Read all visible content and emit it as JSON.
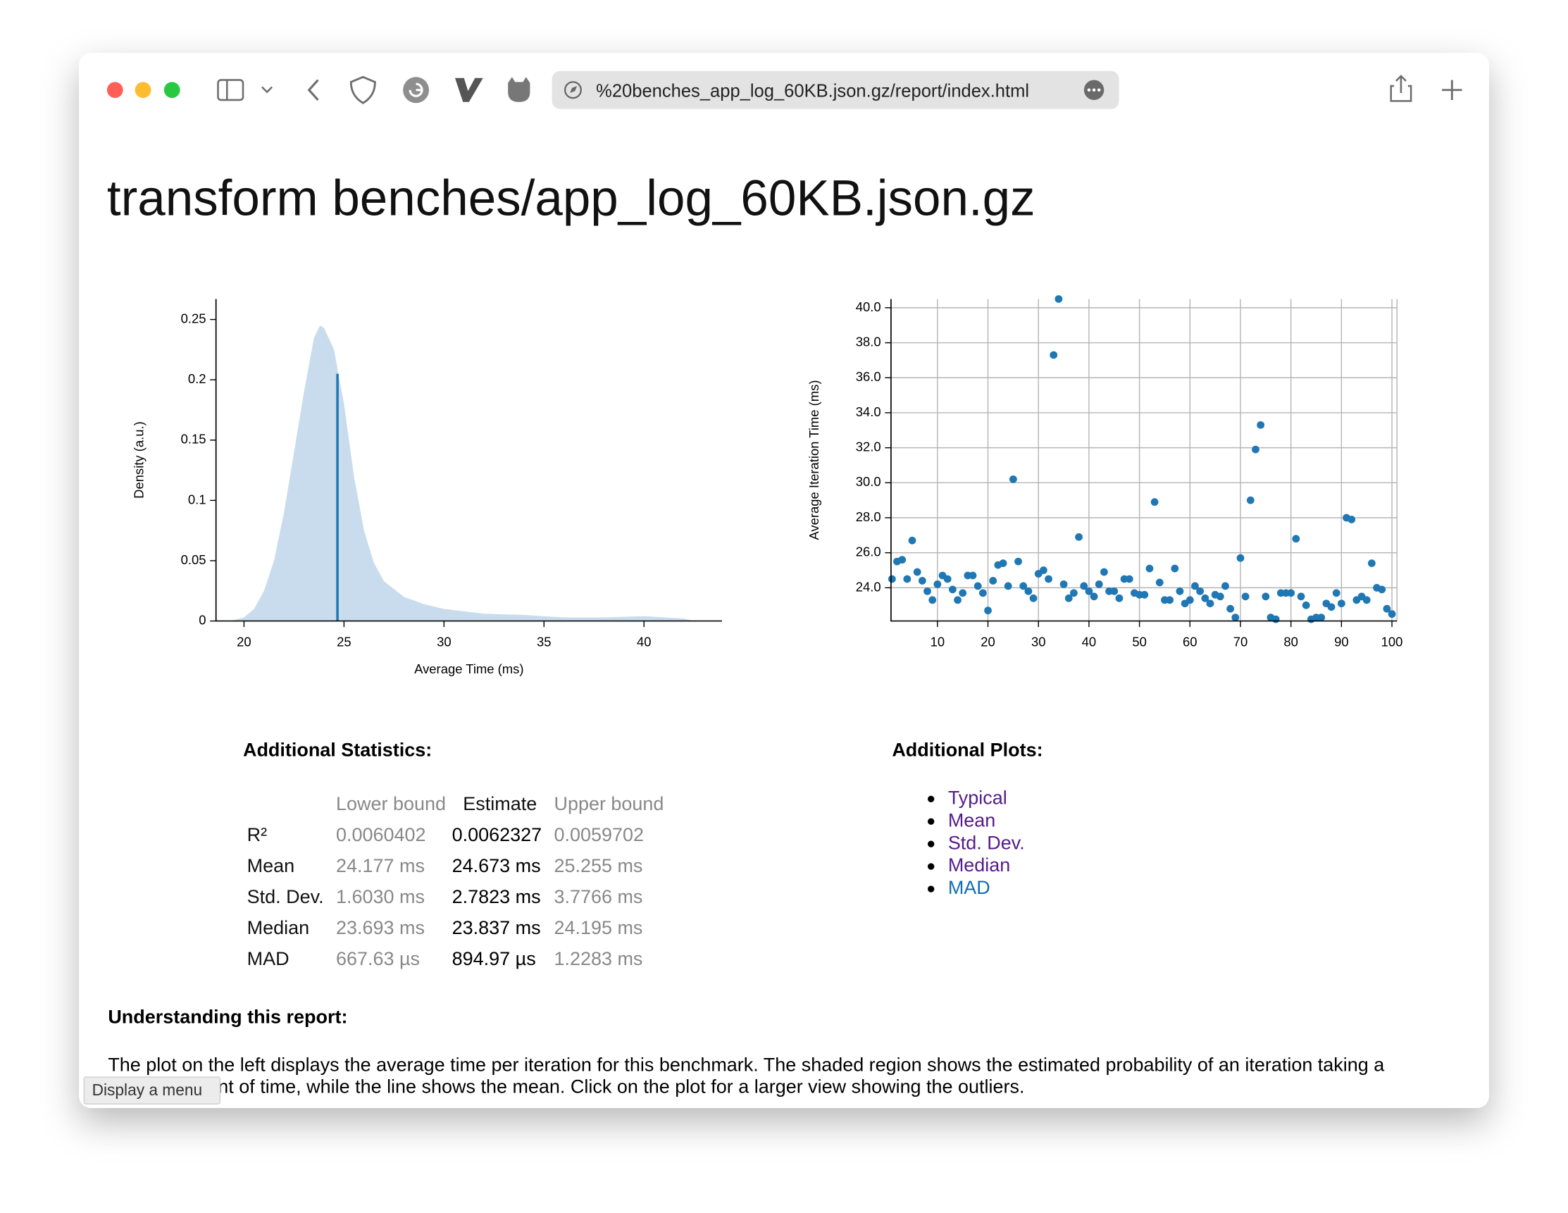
{
  "browser": {
    "url": "%20benches_app_log_60KB.json.gz/report/index.html"
  },
  "header": {
    "title": "transform benches/app_log_60KB.json.gz"
  },
  "chart_data": [
    {
      "type": "area",
      "x_label": "Average Time (ms)",
      "y_label": "Density (a.u.)",
      "color": "#c9dced",
      "x": [
        19.3,
        20,
        20.5,
        21,
        21.5,
        22,
        22.5,
        23,
        23.5,
        23.8,
        24,
        24.5,
        25,
        25.5,
        26,
        26.5,
        27,
        28,
        29,
        30,
        32,
        34,
        36,
        38,
        40,
        42,
        42.5
      ],
      "values": [
        0,
        0.003,
        0.01,
        0.025,
        0.05,
        0.09,
        0.14,
        0.19,
        0.235,
        0.245,
        0.243,
        0.225,
        0.18,
        0.12,
        0.075,
        0.048,
        0.033,
        0.02,
        0.014,
        0.01,
        0.006,
        0.005,
        0.003,
        0.003,
        0.004,
        0.002,
        0
      ],
      "mean_line": {
        "x": 24.673,
        "y": 0.205,
        "color": "#1f77b4"
      },
      "xlim": [
        18.6,
        43.9
      ],
      "ylim": [
        0,
        0.267
      ],
      "xticks": [
        20,
        25,
        30,
        35,
        40
      ],
      "yticks": [
        0,
        0.05,
        0.1,
        0.15,
        0.2,
        0.25
      ],
      "grid": false
    },
    {
      "type": "scatter",
      "y_label": "Average Iteration Time (ms)",
      "color": "#1f77b4",
      "x": [
        1,
        2,
        3,
        4,
        5,
        6,
        7,
        8,
        9,
        10,
        11,
        12,
        13,
        14,
        15,
        16,
        17,
        18,
        19,
        20,
        21,
        22,
        23,
        24,
        25,
        26,
        27,
        28,
        29,
        30,
        31,
        32,
        33,
        34,
        35,
        36,
        37,
        38,
        39,
        40,
        41,
        42,
        43,
        44,
        45,
        46,
        47,
        48,
        49,
        50,
        51,
        52,
        53,
        54,
        55,
        56,
        57,
        58,
        59,
        60,
        61,
        62,
        63,
        64,
        65,
        66,
        67,
        68,
        69,
        70,
        71,
        72,
        73,
        74,
        75,
        76,
        77,
        78,
        79,
        80,
        81,
        82,
        83,
        84,
        85,
        86,
        87,
        88,
        89,
        90,
        91,
        92,
        93,
        94,
        95,
        96,
        97,
        98,
        99,
        100
      ],
      "values": [
        24.5,
        25.5,
        25.6,
        24.5,
        26.7,
        24.9,
        24.4,
        23.8,
        23.3,
        24.2,
        24.7,
        24.5,
        23.9,
        23.3,
        23.7,
        24.7,
        24.7,
        24.1,
        23.7,
        22.7,
        24.4,
        25.3,
        25.4,
        24.1,
        30.2,
        25.5,
        24.1,
        23.8,
        23.4,
        24.8,
        25.0,
        24.5,
        37.3,
        40.5,
        24.2,
        23.4,
        23.7,
        26.9,
        24.1,
        23.8,
        23.5,
        24.2,
        24.9,
        23.8,
        23.8,
        23.4,
        24.5,
        24.5,
        23.7,
        23.6,
        23.6,
        25.1,
        28.9,
        24.3,
        23.3,
        23.3,
        25.1,
        23.8,
        23.1,
        23.3,
        24.1,
        23.8,
        23.4,
        23.1,
        23.6,
        23.5,
        24.1,
        22.8,
        22.3,
        25.7,
        23.5,
        29.0,
        31.9,
        33.3,
        23.5,
        22.3,
        22.2,
        23.7,
        23.7,
        23.7,
        26.8,
        23.5,
        23.0,
        22.2,
        22.3,
        22.3,
        23.1,
        22.9,
        23.7,
        23.1,
        28.0,
        27.9,
        23.3,
        23.5,
        23.3,
        25.4,
        24.0,
        23.9,
        22.8,
        22.5
      ],
      "xlim": [
        0.8,
        101
      ],
      "ylim": [
        22.1,
        40.5
      ],
      "xticks": [
        10,
        20,
        30,
        40,
        50,
        60,
        70,
        80,
        90,
        100
      ],
      "yticks": [
        {
          "value": 24,
          "label": "24.0"
        },
        {
          "value": 26,
          "label": "26.0"
        },
        {
          "value": 28,
          "label": "28.0"
        },
        {
          "value": 30,
          "label": "30.0"
        },
        {
          "value": 32,
          "label": "32.0"
        },
        {
          "value": 34,
          "label": "34.0"
        },
        {
          "value": 36,
          "label": "36.0"
        },
        {
          "value": 38,
          "label": "38.0"
        },
        {
          "value": 40,
          "label": "40.0"
        }
      ],
      "grid": true
    }
  ],
  "statistics": {
    "title": "Additional Statistics:",
    "columns": [
      "Lower bound",
      "Estimate",
      "Upper bound"
    ],
    "rows": [
      {
        "label": "R²",
        "values": [
          "0.0060402",
          "0.0062327",
          "0.0059702"
        ]
      },
      {
        "label": "Mean",
        "values": [
          "24.177 ms",
          "24.673 ms",
          "25.255 ms"
        ]
      },
      {
        "label": "Std. Dev.",
        "values": [
          "1.6030 ms",
          "2.7823 ms",
          "3.7766 ms"
        ]
      },
      {
        "label": "Median",
        "values": [
          "23.693 ms",
          "23.837 ms",
          "24.195 ms"
        ]
      },
      {
        "label": "MAD",
        "values": [
          "667.63 µs",
          "894.97 µs",
          "1.2283 ms"
        ]
      }
    ]
  },
  "plots": {
    "title": "Additional Plots:",
    "items": [
      {
        "label": "Typical",
        "color": "#551a8b"
      },
      {
        "label": "Mean",
        "color": "#551a8b"
      },
      {
        "label": "Std. Dev.",
        "color": "#551a8b"
      },
      {
        "label": "Median",
        "color": "#551a8b"
      },
      {
        "label": "MAD",
        "color": "#0f6db3"
      }
    ]
  },
  "understanding": {
    "title": "Understanding this report:",
    "lines": [
      "The plot on the left displays the average time per iteration for this benchmark. The shaded region shows the estimated probability of an iteration taking a",
      "certain amount of time, while the line shows the mean. Click on the plot for a larger view showing the outliers."
    ]
  },
  "tooltip": {
    "text": "Display a menu"
  }
}
